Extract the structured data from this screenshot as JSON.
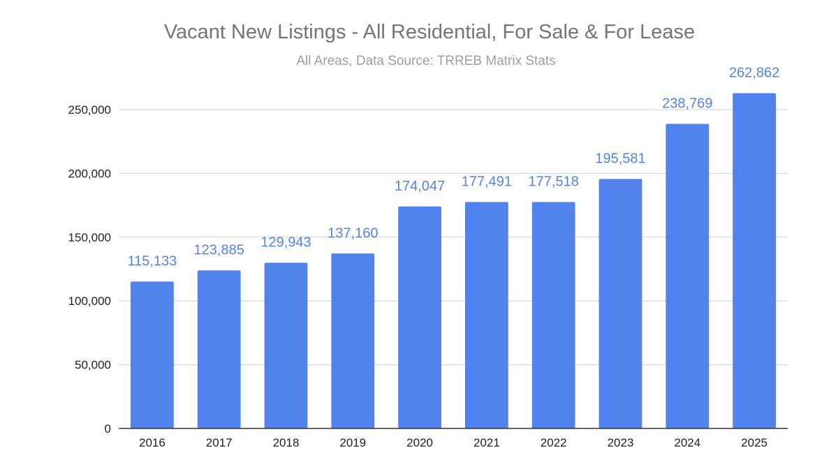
{
  "chart_data": {
    "type": "bar",
    "title": "Vacant New Listings - All Residential, For Sale & For Lease",
    "subtitle": "All Areas, Data Source: TRREB Matrix Stats",
    "categories": [
      "2016",
      "2017",
      "2018",
      "2019",
      "2020",
      "2021",
      "2022",
      "2023",
      "2024",
      "2025"
    ],
    "values": [
      115133,
      123885,
      129943,
      137160,
      174047,
      177491,
      177518,
      195581,
      238769,
      262862
    ],
    "data_labels": [
      "115,133",
      "123,885",
      "129,943",
      "137,160",
      "174,047",
      "177,491",
      "177,518",
      "195,581",
      "238,769",
      "262,862"
    ],
    "ylim": [
      0,
      250000
    ],
    "yticks": [
      0,
      50000,
      100000,
      150000,
      200000,
      250000
    ],
    "ytick_labels": [
      "0",
      "50,000",
      "100,000",
      "150,000",
      "200,000",
      "250,000"
    ],
    "xlabel": "",
    "ylabel": "",
    "grid": true,
    "legend": "none",
    "colors": {
      "bar": "#5283ed",
      "label": "#5283ed",
      "grid": "#d0d0d0",
      "axis": "#333333"
    }
  }
}
